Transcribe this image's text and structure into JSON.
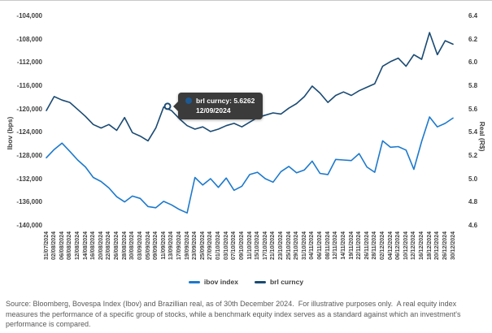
{
  "chart_data": {
    "type": "line",
    "grid": false,
    "legend_position": "bottom-center",
    "categories": [
      "31/07/2024",
      "02/08/2024",
      "06/08/2024",
      "08/08/2024",
      "12/08/2024",
      "14/08/2024",
      "16/08/2024",
      "20/08/2024",
      "22/08/2024",
      "26/08/2024",
      "28/08/2024",
      "30/08/2024",
      "03/09/2024",
      "05/09/2024",
      "09/09/2024",
      "11/09/2024",
      "13/09/2024",
      "17/09/2024",
      "19/09/2024",
      "23/09/2024",
      "25/09/2024",
      "27/09/2024",
      "01/10/2024",
      "03/10/2024",
      "07/10/2024",
      "09/10/2024",
      "11/10/2024",
      "15/10/2024",
      "17/10/2024",
      "21/10/2024",
      "23/10/2024",
      "25/10/2024",
      "29/10/2024",
      "31/10/2024",
      "04/11/2024",
      "06/11/2024",
      "08/11/2024",
      "12/11/2024",
      "14/11/2024",
      "19/11/2024",
      "22/11/2024",
      "26/11/2024",
      "28/11/2024",
      "02/12/2024",
      "04/12/2024",
      "06/12/2024",
      "10/12/2024",
      "12/12/2024",
      "16/12/2024",
      "18/12/2024",
      "20/12/2024",
      "26/12/2024",
      "30/12/2024"
    ],
    "left_axis": {
      "title": "Ibov (bps)",
      "max": -104000,
      "min": -140000,
      "ticks": [
        "-104,000",
        "-108,000",
        "-112,000",
        "-116,000",
        "-120,000",
        "-124,000",
        "-128,000",
        "-132,000",
        "-136,000",
        "-140,000"
      ]
    },
    "right_axis": {
      "title": "Real (R$)",
      "max": 6.4,
      "min": 4.6,
      "ticks": [
        "6.4",
        "6.2",
        "6.0",
        "5.8",
        "5.6",
        "5.4",
        "5.2",
        "5.0",
        "4.8",
        "4.6"
      ]
    },
    "series": [
      {
        "name": "ibov index",
        "axis": "left",
        "color": "#1d79cc",
        "values": [
          -128300,
          -126900,
          -125800,
          -127200,
          -128700,
          -129900,
          -131700,
          -132400,
          -133500,
          -135000,
          -135900,
          -134900,
          -135300,
          -136700,
          -136900,
          -135800,
          -136400,
          -137200,
          -137800,
          -131700,
          -133000,
          -131900,
          -133400,
          -131800,
          -133900,
          -133200,
          -131200,
          -130800,
          -131900,
          -132500,
          -130700,
          -129800,
          -130900,
          -130400,
          -128900,
          -131000,
          -131200,
          -128600,
          -128700,
          -128800,
          -127600,
          -129900,
          -130800,
          -125400,
          -126500,
          -126400,
          -127000,
          -130300,
          -125500,
          -121300,
          -123000,
          -122400,
          -121500
        ]
      },
      {
        "name": "brl curncy",
        "axis": "right",
        "color": "#1a4a73",
        "values": [
          5.59,
          5.71,
          5.68,
          5.66,
          5.6,
          5.54,
          5.47,
          5.44,
          5.47,
          5.42,
          5.53,
          5.4,
          5.37,
          5.33,
          5.44,
          5.62,
          5.59,
          5.52,
          5.46,
          5.43,
          5.45,
          5.41,
          5.43,
          5.46,
          5.48,
          5.45,
          5.49,
          5.53,
          5.55,
          5.57,
          5.56,
          5.61,
          5.65,
          5.71,
          5.8,
          5.74,
          5.66,
          5.72,
          5.75,
          5.72,
          5.76,
          5.79,
          5.82,
          5.97,
          6.01,
          6.04,
          5.97,
          6.07,
          6.03,
          6.26,
          6.07,
          6.19,
          6.16
        ]
      }
    ],
    "legend": [
      {
        "label": "ibov index",
        "color": "#1d79cc"
      },
      {
        "label": "brl curncy",
        "color": "#1a4a73"
      }
    ],
    "tooltip": {
      "line1": "brl curncy: 5.6262",
      "date": "12/09/2024",
      "value_num": 5.6262,
      "series": "brl curncy",
      "between": [
        "11/09/2024",
        "13/09/2024"
      ],
      "bg_color": "#3b3b3b",
      "dot_color": "#1d5a92"
    }
  },
  "footer": {
    "text": "Source: Bloomberg, Bovespa Index (Ibov) and Brazillian real, as of 30th December 2024.  For illustrative purposes only.  A real equity index measures the performance of a specific group of stocks, while a benchmark equity index serves as a standard against which an investment's performance is compared."
  }
}
